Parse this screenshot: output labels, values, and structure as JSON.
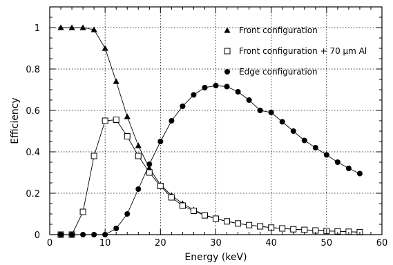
{
  "chart_data": {
    "type": "line",
    "xlabel": "Energy (keV)",
    "ylabel": "Efficiency",
    "xlim": [
      0,
      60
    ],
    "ylim": [
      0,
      1.1
    ],
    "x_ticks": [
      "0",
      "10",
      "20",
      "30",
      "40",
      "50",
      "60"
    ],
    "y_ticks": [
      "0",
      "0.2",
      "0.4",
      "0.6",
      "0.8",
      "1"
    ],
    "grid": true,
    "legend_position": "top-right",
    "series": [
      {
        "name": "Front configuration",
        "marker": "filled-triangle",
        "x": [
          2,
          4,
          6,
          8,
          10,
          12,
          14,
          16,
          18,
          20,
          22,
          24,
          26,
          28,
          30,
          32,
          34,
          36,
          38,
          40,
          42,
          44,
          46,
          48,
          50,
          52,
          54,
          56
        ],
        "y": [
          1.0,
          1.0,
          1.0,
          0.99,
          0.9,
          0.74,
          0.57,
          0.43,
          0.32,
          0.24,
          0.19,
          0.15,
          0.12,
          0.095,
          0.078,
          0.064,
          0.054,
          0.046,
          0.04,
          0.034,
          0.03,
          0.026,
          0.023,
          0.02,
          0.018,
          0.016,
          0.014,
          0.012
        ]
      },
      {
        "name": "Front configuration + 70 μm Al",
        "marker": "open-square",
        "x": [
          2,
          4,
          6,
          8,
          10,
          12,
          14,
          16,
          18,
          20,
          22,
          24,
          26,
          28,
          30,
          32,
          34,
          36,
          38,
          40,
          42,
          44,
          46,
          48,
          50,
          52,
          54,
          56
        ],
        "y": [
          0.0,
          0.0,
          0.11,
          0.38,
          0.55,
          0.555,
          0.475,
          0.38,
          0.3,
          0.235,
          0.18,
          0.14,
          0.115,
          0.093,
          0.077,
          0.064,
          0.054,
          0.046,
          0.04,
          0.034,
          0.03,
          0.026,
          0.023,
          0.02,
          0.018,
          0.016,
          0.014,
          0.012
        ]
      },
      {
        "name": "Edge configuration",
        "marker": "filled-circle",
        "x": [
          2,
          4,
          6,
          8,
          10,
          12,
          14,
          16,
          18,
          20,
          22,
          24,
          26,
          28,
          30,
          32,
          34,
          36,
          38,
          40,
          42,
          44,
          46,
          48,
          50,
          52,
          54,
          56
        ],
        "y": [
          0.0,
          0.0,
          0.0,
          0.0,
          0.0,
          0.03,
          0.1,
          0.22,
          0.34,
          0.45,
          0.55,
          0.62,
          0.675,
          0.71,
          0.72,
          0.715,
          0.69,
          0.65,
          0.6,
          0.59,
          0.545,
          0.5,
          0.455,
          0.42,
          0.385,
          0.35,
          0.32,
          0.295
        ]
      }
    ]
  }
}
